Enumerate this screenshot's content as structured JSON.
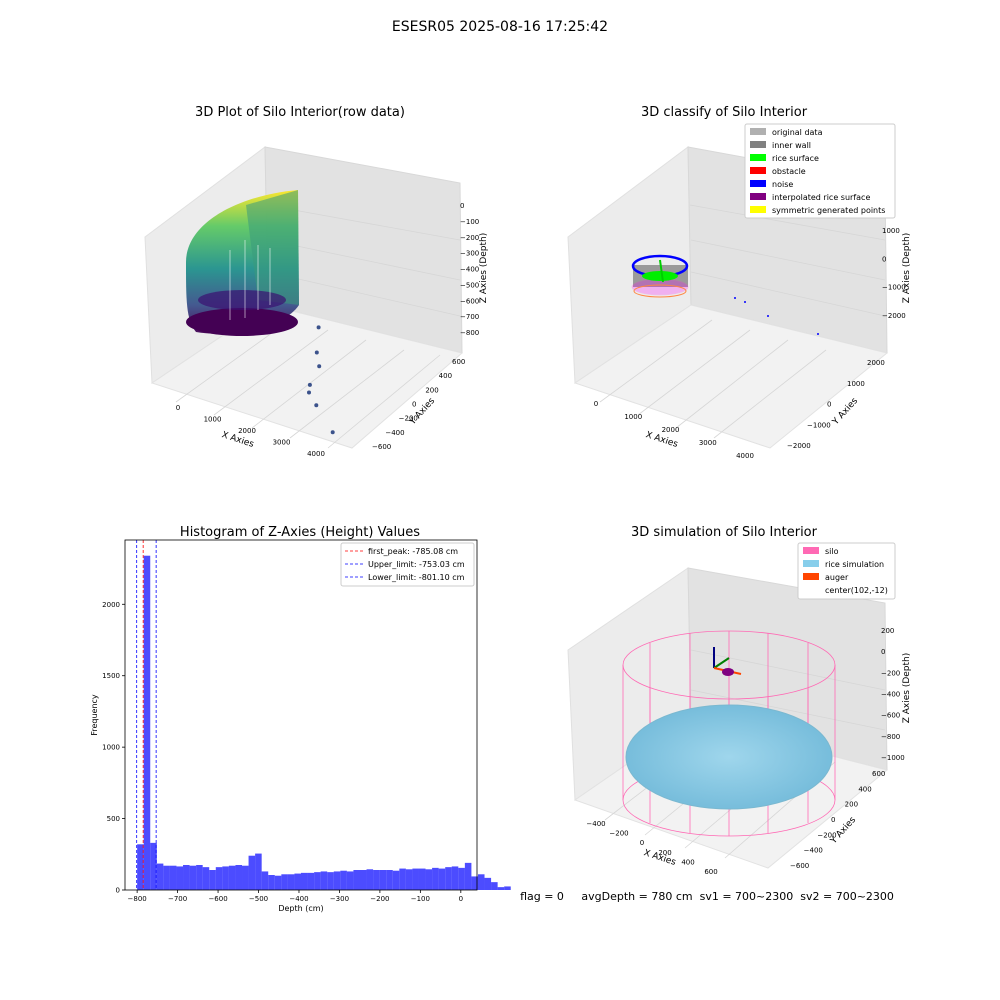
{
  "figure": {
    "suptitle": "ESESR05 2025-08-16 17:25:42",
    "status_line": "flag = 0     avgDepth = 780 cm  sv1 = 700~2300  sv2 = 700~2300"
  },
  "chart_data": [
    {
      "type": "scatter",
      "projection": "3d",
      "title": "3D Plot of Silo Interior(row data)",
      "xlabel": "X Axies",
      "ylabel": "Y Axies",
      "zlabel": "Z Axies (Depth)",
      "x_ticks": [
        "0",
        "1000",
        "2000",
        "3000",
        "4000"
      ],
      "y_ticks": [
        "−600",
        "−400",
        "−200",
        "0",
        "200",
        "400",
        "600"
      ],
      "z_ticks": [
        "−800",
        "−700",
        "−600",
        "−500",
        "−400",
        "−300",
        "−200",
        "−100",
        "0"
      ],
      "xlim": [
        -500,
        4300
      ],
      "ylim": [
        -650,
        650
      ],
      "zlim": [
        -850,
        50
      ],
      "colormap": "viridis",
      "outliers": [
        {
          "x": 1800,
          "y": 200,
          "z": -600
        },
        {
          "x": 2000,
          "y": 100,
          "z": -700
        },
        {
          "x": 2200,
          "y": 50,
          "z": -750
        },
        {
          "x": 2300,
          "y": -100,
          "z": -800
        },
        {
          "x": 2400,
          "y": -150,
          "z": -820
        },
        {
          "x": 3000,
          "y": -300,
          "z": -800
        },
        {
          "x": 4000,
          "y": -500,
          "z": -820
        }
      ]
    },
    {
      "type": "scatter",
      "projection": "3d",
      "title": "3D classify of Silo Interior",
      "xlabel": "X Axies",
      "ylabel": "Y Axies",
      "zlabel": "Z Axies (Depth)",
      "x_ticks": [
        "0",
        "1000",
        "2000",
        "3000",
        "4000"
      ],
      "y_ticks": [
        "−2000",
        "−1000",
        "0",
        "1000",
        "2000"
      ],
      "z_ticks": [
        "−2000",
        "−1000",
        "0",
        "1000"
      ],
      "legend_position": "top-right",
      "legend": [
        {
          "label": "original data",
          "color": "#b0b0b0"
        },
        {
          "label": "inner wall",
          "color": "#808080"
        },
        {
          "label": "rice surface",
          "color": "#00ff00"
        },
        {
          "label": "obstacle",
          "color": "#ff0000"
        },
        {
          "label": "noise",
          "color": "#0000ff"
        },
        {
          "label": "interpolated rice surface",
          "color": "#800080"
        },
        {
          "label": "symmetric generated points",
          "color": "#ffff00"
        }
      ]
    },
    {
      "type": "bar",
      "title": "Histogram of Z-Axies (Height) Values",
      "xlabel": "Depth (cm)",
      "ylabel": "Frequency",
      "xlim": [
        -830,
        40
      ],
      "ylim": [
        0,
        2450
      ],
      "x_ticks": [
        "−800",
        "−700",
        "−600",
        "−500",
        "−400",
        "−300",
        "−200",
        "−100",
        "0"
      ],
      "x_tick_values": [
        -800,
        -700,
        -600,
        -500,
        -400,
        -300,
        -200,
        -100,
        0
      ],
      "y_ticks": [
        "0",
        "500",
        "1000",
        "1500",
        "2000"
      ],
      "y_tick_values": [
        0,
        500,
        1000,
        1500,
        2000
      ],
      "bar_color": "#0000ff",
      "bin_start": -800,
      "bin_width": 16.2,
      "values": [
        320,
        2340,
        330,
        185,
        170,
        170,
        165,
        175,
        170,
        175,
        160,
        140,
        160,
        165,
        170,
        175,
        170,
        240,
        255,
        130,
        105,
        100,
        110,
        110,
        115,
        120,
        120,
        125,
        130,
        125,
        130,
        135,
        130,
        140,
        140,
        145,
        140,
        140,
        140,
        135,
        150,
        145,
        150,
        150,
        145,
        155,
        150,
        160,
        165,
        155,
        190,
        95,
        110,
        85,
        55,
        20,
        25
      ],
      "legend_position": "top-right",
      "reference_lines": [
        {
          "label": "first_peak: -785.08 cm",
          "x": -785.08,
          "color": "#ff0000"
        },
        {
          "label": "Upper_limit: -753.03 cm",
          "x": -753.03,
          "color": "#0000ff"
        },
        {
          "label": "Lower_limit: -801.10 cm",
          "x": -801.1,
          "color": "#0000ff"
        }
      ]
    },
    {
      "type": "scatter",
      "projection": "3d",
      "title": "3D simulation of Silo Interior",
      "xlabel": "X Axies",
      "ylabel": "Y Axies",
      "zlabel": "Z Axies (Depth)",
      "x_ticks": [
        "−400",
        "−200",
        "0",
        "200",
        "400",
        "600"
      ],
      "y_ticks": [
        "−600",
        "−400",
        "−200",
        "0",
        "200",
        "400",
        "600"
      ],
      "z_ticks": [
        "−1000",
        "−800",
        "−600",
        "−400",
        "−200",
        "0",
        "200"
      ],
      "legend_position": "top-right",
      "legend": [
        {
          "label": "silo",
          "color": "#ff69b4"
        },
        {
          "label": "rice simulation",
          "color": "#87ceeb"
        },
        {
          "label": "auger",
          "color": "#ff4500"
        },
        {
          "label": "center(102,-12)",
          "color": ""
        }
      ]
    }
  ]
}
